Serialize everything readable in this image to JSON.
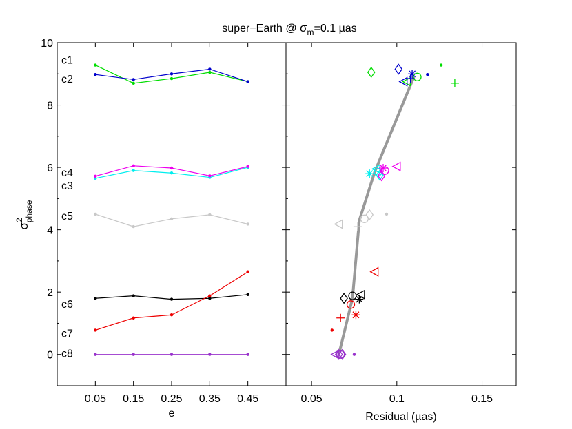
{
  "figure": {
    "title_main": "super−Earth @ ",
    "title_sigma": "σ",
    "title_sub": "m",
    "title_rest": "=0.1 µas"
  },
  "chart_data": [
    {
      "type": "line",
      "panel": "left",
      "xlabel": "e",
      "ylabel_base": "σ",
      "ylabel_sup": "2",
      "ylabel_sub": "phase",
      "x": [
        0.05,
        0.15,
        0.25,
        0.35,
        0.45
      ],
      "xtick_labels": [
        "0.05",
        "0.15",
        "0.25",
        "0.35",
        "0.45"
      ],
      "xlim": [
        -0.05,
        0.55
      ],
      "ylim": [
        -1,
        10
      ],
      "yticks": [
        0,
        2,
        4,
        6,
        8,
        10
      ],
      "ytick_labels": [
        "0",
        "2",
        "4",
        "6",
        "8",
        "10"
      ],
      "series": [
        {
          "name": "c1",
          "color": "#00dd00",
          "values": [
            9.28,
            8.7,
            8.85,
            9.05,
            8.75
          ]
        },
        {
          "name": "c2",
          "color": "#0000cc",
          "values": [
            8.98,
            8.82,
            9.0,
            9.15,
            8.75
          ]
        },
        {
          "name": "c3",
          "color": "#00eeee",
          "values": [
            5.65,
            5.9,
            5.82,
            5.68,
            6.0
          ]
        },
        {
          "name": "c4",
          "color": "#ee00ee",
          "values": [
            5.72,
            6.05,
            5.98,
            5.73,
            6.03
          ]
        },
        {
          "name": "c5",
          "color": "#c8c8c8",
          "values": [
            4.5,
            4.1,
            4.35,
            4.48,
            4.18
          ]
        },
        {
          "name": "c6",
          "color": "#000000",
          "values": [
            1.8,
            1.88,
            1.77,
            1.8,
            1.92
          ]
        },
        {
          "name": "c7",
          "color": "#ee0000",
          "values": [
            0.78,
            1.17,
            1.27,
            1.88,
            2.65
          ]
        },
        {
          "name": "c8",
          "color": "#9933cc",
          "values": [
            0.0,
            0.0,
            0.0,
            0.0,
            0.0
          ]
        }
      ]
    },
    {
      "type": "scatter",
      "panel": "right",
      "xlabel": "Residual (µas)",
      "xlim": [
        0.035,
        0.17
      ],
      "ylim": [
        -1,
        10
      ],
      "xticks": [
        0.05,
        0.1,
        0.15
      ],
      "xtick_labels": [
        "0.05",
        "0.1",
        "0.15"
      ],
      "fit_line": {
        "color": "#999999",
        "points": [
          [
            0.066,
            0.0
          ],
          [
            0.074,
            1.8
          ],
          [
            0.078,
            4.3
          ],
          [
            0.087,
            5.85
          ],
          [
            0.11,
            8.9
          ]
        ]
      },
      "series": [
        {
          "name": "c1",
          "color": "#00dd00",
          "points": [
            {
              "m": "dot",
              "x": 0.126,
              "y": 9.28
            },
            {
              "m": "plus",
              "x": 0.134,
              "y": 8.7
            },
            {
              "m": "diamond",
              "x": 0.085,
              "y": 9.05
            },
            {
              "m": "circle",
              "x": 0.112,
              "y": 8.9
            },
            {
              "m": "tri-left",
              "x": 0.106,
              "y": 8.75
            }
          ]
        },
        {
          "name": "c2",
          "color": "#0000cc",
          "points": [
            {
              "m": "dot",
              "x": 0.118,
              "y": 8.98
            },
            {
              "m": "diamond",
              "x": 0.101,
              "y": 9.15
            },
            {
              "m": "star",
              "x": 0.109,
              "y": 9.0
            },
            {
              "m": "plus",
              "x": 0.108,
              "y": 8.85
            },
            {
              "m": "tri-left",
              "x": 0.104,
              "y": 8.75
            }
          ]
        },
        {
          "name": "c3",
          "color": "#00eeee",
          "points": [
            {
              "m": "star",
              "x": 0.084,
              "y": 5.8
            },
            {
              "m": "tri-left",
              "x": 0.088,
              "y": 5.95
            },
            {
              "m": "diamond",
              "x": 0.09,
              "y": 5.75
            },
            {
              "m": "circle",
              "x": 0.089,
              "y": 5.85
            }
          ]
        },
        {
          "name": "c4",
          "color": "#ee00ee",
          "points": [
            {
              "m": "tri-left",
              "x": 0.1,
              "y": 6.03
            },
            {
              "m": "star",
              "x": 0.092,
              "y": 5.98
            },
            {
              "m": "circle",
              "x": 0.093,
              "y": 5.9
            },
            {
              "m": "diamond",
              "x": 0.091,
              "y": 5.73
            }
          ]
        },
        {
          "name": "c5",
          "color": "#c8c8c8",
          "points": [
            {
              "m": "dot",
              "x": 0.094,
              "y": 4.5
            },
            {
              "m": "tri-left",
              "x": 0.066,
              "y": 4.18
            },
            {
              "m": "plus",
              "x": 0.077,
              "y": 4.1
            },
            {
              "m": "circle",
              "x": 0.081,
              "y": 4.35
            },
            {
              "m": "diamond",
              "x": 0.084,
              "y": 4.48
            }
          ]
        },
        {
          "name": "c6",
          "color": "#000000",
          "points": [
            {
              "m": "diamond",
              "x": 0.069,
              "y": 1.8
            },
            {
              "m": "circle",
              "x": 0.074,
              "y": 1.88
            },
            {
              "m": "star",
              "x": 0.078,
              "y": 1.77
            },
            {
              "m": "tri-left",
              "x": 0.079,
              "y": 1.92
            }
          ]
        },
        {
          "name": "c7",
          "color": "#ee0000",
          "points": [
            {
              "m": "dot",
              "x": 0.062,
              "y": 0.78
            },
            {
              "m": "plus",
              "x": 0.067,
              "y": 1.17
            },
            {
              "m": "star",
              "x": 0.076,
              "y": 1.27
            },
            {
              "m": "circle",
              "x": 0.073,
              "y": 1.6
            },
            {
              "m": "tri-left",
              "x": 0.087,
              "y": 2.65
            }
          ]
        },
        {
          "name": "c8",
          "color": "#9933cc",
          "points": [
            {
              "m": "dot",
              "x": 0.075,
              "y": 0.0
            },
            {
              "m": "diamond",
              "x": 0.066,
              "y": 0.0
            },
            {
              "m": "diamond",
              "x": 0.068,
              "y": 0.0
            },
            {
              "m": "tri-left",
              "x": 0.064,
              "y": 0.0
            },
            {
              "m": "circle",
              "x": 0.067,
              "y": 0.0
            }
          ]
        }
      ]
    }
  ]
}
